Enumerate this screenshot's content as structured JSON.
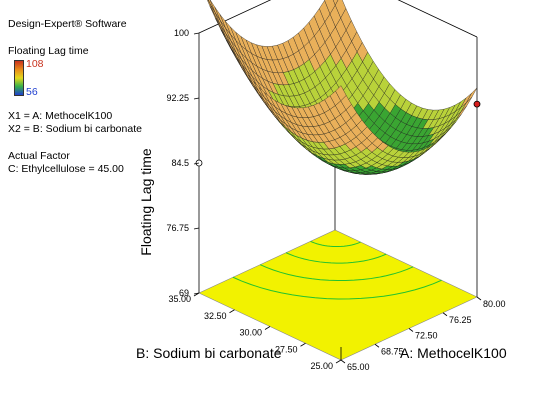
{
  "software": "Design-Expert® Software",
  "response_name": "Floating Lag time",
  "legend": {
    "high": "108",
    "low": "56",
    "high_color": "#c8321e",
    "low_color": "#1f3fd0"
  },
  "factors": {
    "x1": "X1 = A: MethocelK100",
    "x2": "X2 = B: Sodium bi carbonate"
  },
  "actual_factor": {
    "heading": "Actual Factor",
    "value": "C: Ethylcellulose = 45.00"
  },
  "chart_data": {
    "type": "surface",
    "zlabel": "Floating Lag time",
    "xlabel": "A: MethocelK100",
    "ylabel": "B: Sodium bi carbonate",
    "z_ticks": [
      "100",
      "92.25",
      "84.5",
      "76.75",
      "69"
    ],
    "a_ticks": [
      "65.00",
      "68.75",
      "72.50",
      "76.25",
      "80.00"
    ],
    "b_ticks": [
      "25.00",
      "27.50",
      "30.00",
      "32.50",
      "35.00"
    ],
    "xlim": [
      65,
      80
    ],
    "ylim": [
      25,
      35
    ],
    "zlim": [
      69,
      100
    ],
    "colors": {
      "surface_low": "#3aa532",
      "surface_mid": "#b9d23a",
      "surface_high": "#e9b05a",
      "contour_plane": "#f2f200",
      "contour_lines": "#22c22e",
      "design_point": "#d81e1e"
    },
    "design_points": [
      {
        "a": 80.0,
        "b": 25.0,
        "z": 92.0,
        "color": "red"
      },
      {
        "a": 65.0,
        "b": 35.0,
        "z": 84.5,
        "color": "white"
      }
    ]
  }
}
